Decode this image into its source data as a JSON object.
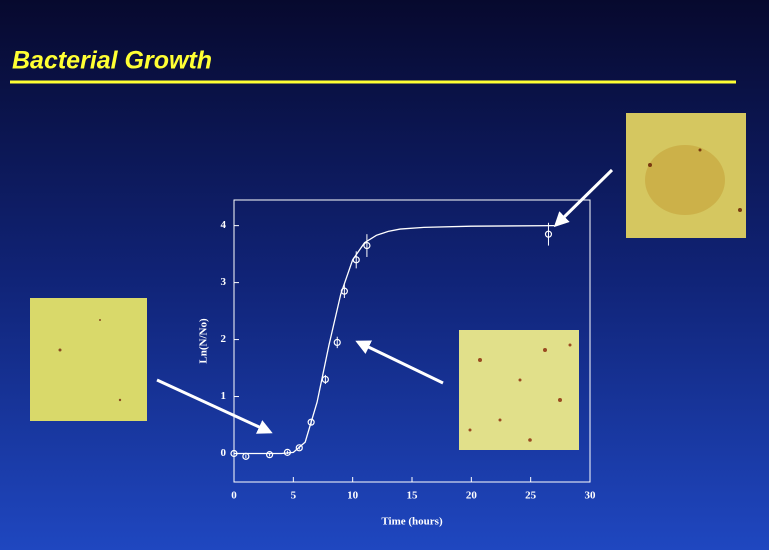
{
  "chart_data": {
    "type": "scatter",
    "title": "Bacterial Growth",
    "x_label": "Time (hours)",
    "y_label": "Ln(N/No)",
    "x": [
      0,
      1,
      3,
      4.5,
      5.5,
      6.5,
      7.7,
      8.7,
      9.3,
      10.3,
      11.2,
      26.5
    ],
    "values": [
      0,
      -0.05,
      -0.02,
      0.02,
      0.1,
      0.55,
      1.3,
      1.95,
      2.85,
      3.4,
      3.65,
      3.85
    ],
    "errors": [
      0.03,
      0.03,
      0.03,
      0.03,
      0.03,
      0.05,
      0.08,
      0.1,
      0.12,
      0.15,
      0.2,
      0.2
    ],
    "curve": {
      "x": [
        0,
        2,
        4,
        5,
        6,
        7,
        8,
        9,
        10,
        11,
        12,
        13,
        14,
        16,
        20,
        27
      ],
      "values": [
        0,
        0,
        0,
        0.02,
        0.2,
        0.9,
        1.9,
        2.8,
        3.4,
        3.7,
        3.83,
        3.9,
        3.94,
        3.97,
        3.99,
        4
      ]
    },
    "color": "#ffffff",
    "xlim": [
      0,
      30
    ],
    "xticks": [
      0,
      5,
      10,
      15,
      20,
      25,
      30
    ],
    "ylim": [
      -0.5,
      4.45
    ],
    "yticks": [
      0,
      1,
      2,
      3,
      4
    ]
  }
}
